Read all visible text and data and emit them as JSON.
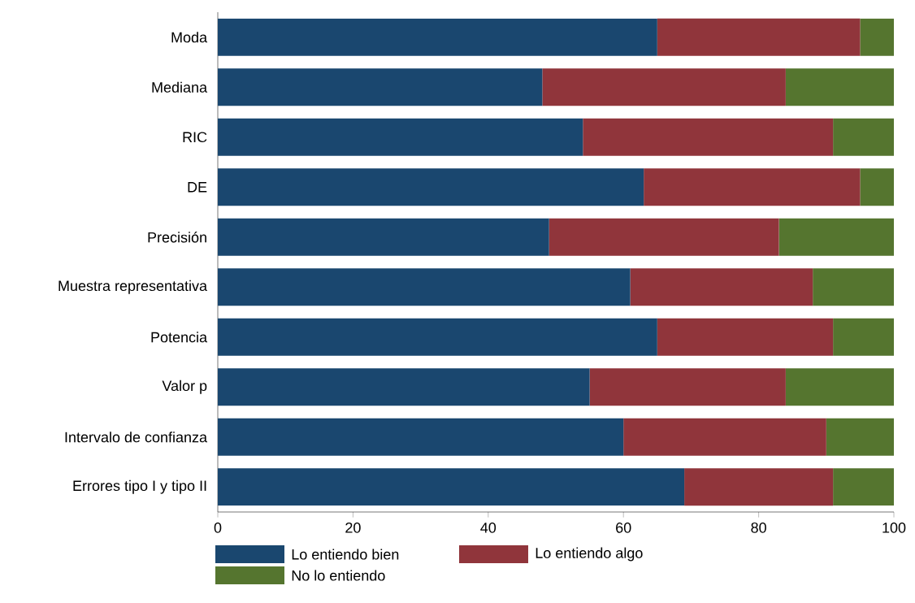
{
  "chart_data": {
    "type": "bar",
    "orientation": "horizontal",
    "stacked": true,
    "categories": [
      "Moda",
      "Mediana",
      "RIC",
      "DE",
      "Precisión",
      "Muestra representativa",
      "Potencia",
      "Valor p",
      "Intervalo de confianza",
      "Errores tipo I y tipo II"
    ],
    "series": [
      {
        "name": "Lo entiendo bien",
        "color": "#1a476f",
        "values": [
          65,
          48,
          54,
          63,
          49,
          61,
          65,
          55,
          60,
          69
        ]
      },
      {
        "name": "Lo entiendo algo",
        "color": "#90353b",
        "values": [
          30,
          36,
          37,
          32,
          34,
          27,
          26,
          29,
          30,
          22
        ]
      },
      {
        "name": "No lo entiendo",
        "color": "#55752f",
        "values": [
          5,
          16,
          9,
          5,
          17,
          12,
          9,
          16,
          10,
          9
        ]
      }
    ],
    "xlim": [
      0,
      100
    ],
    "xticks": [
      0,
      20,
      40,
      60,
      80,
      100
    ],
    "grid": false,
    "legend": "bottom"
  }
}
